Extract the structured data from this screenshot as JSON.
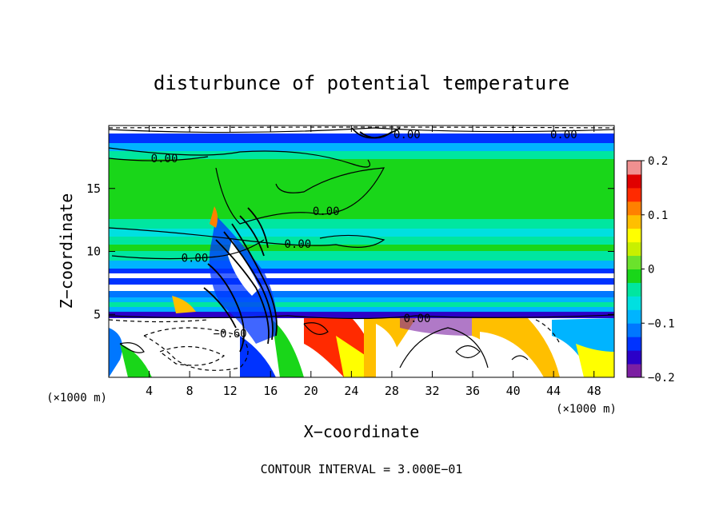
{
  "chart_data": {
    "type": "heatmap",
    "title": "disturbunce of potential temperature",
    "xlabel": "X−coordinate",
    "ylabel": "Z−coordinate",
    "x_unit_left": "(×1000 m)",
    "x_unit_right": "(×1000 m)",
    "xlim": [
      0,
      50
    ],
    "ylim": [
      0,
      20
    ],
    "xticks": [
      4,
      8,
      12,
      16,
      20,
      24,
      28,
      32,
      36,
      40,
      44,
      48
    ],
    "yticks": [
      5,
      10,
      15
    ],
    "colorbar": {
      "range": [
        -0.2,
        0.2
      ],
      "ticks": [
        {
          "value": 0.2,
          "label": "0.2"
        },
        {
          "value": 0.1,
          "label": "0.1"
        },
        {
          "value": 0,
          "label": "0"
        },
        {
          "value": -0.1,
          "label": "−0.1"
        },
        {
          "value": -0.2,
          "label": "−0.2"
        }
      ],
      "colors": [
        "#7b1fa2",
        "#2b00c8",
        "#0033ff",
        "#0077ff",
        "#00b4ff",
        "#00e0e0",
        "#00e6a0",
        "#19d619",
        "#6be22c",
        "#c8f000",
        "#ffff00",
        "#ffbf00",
        "#ff8000",
        "#ff2a00",
        "#e00000",
        "#f09090"
      ]
    },
    "contour_labels": [
      {
        "text": "0.00",
        "x": 29.5,
        "y": 19.3
      },
      {
        "text": "0.00",
        "x": 45,
        "y": 19.3
      },
      {
        "text": "0.00",
        "x": 5.5,
        "y": 17.4
      },
      {
        "text": "0.00",
        "x": 21.5,
        "y": 13.2
      },
      {
        "text": "0.00",
        "x": 18.7,
        "y": 10.6
      },
      {
        "text": "0.00",
        "x": 8.5,
        "y": 9.5
      },
      {
        "text": "0.00",
        "x": 30.5,
        "y": 4.7
      },
      {
        "text": "−0.60",
        "x": 12,
        "y": 3.5
      }
    ],
    "footer": "CONTOUR INTERVAL = 3.000E−01"
  }
}
